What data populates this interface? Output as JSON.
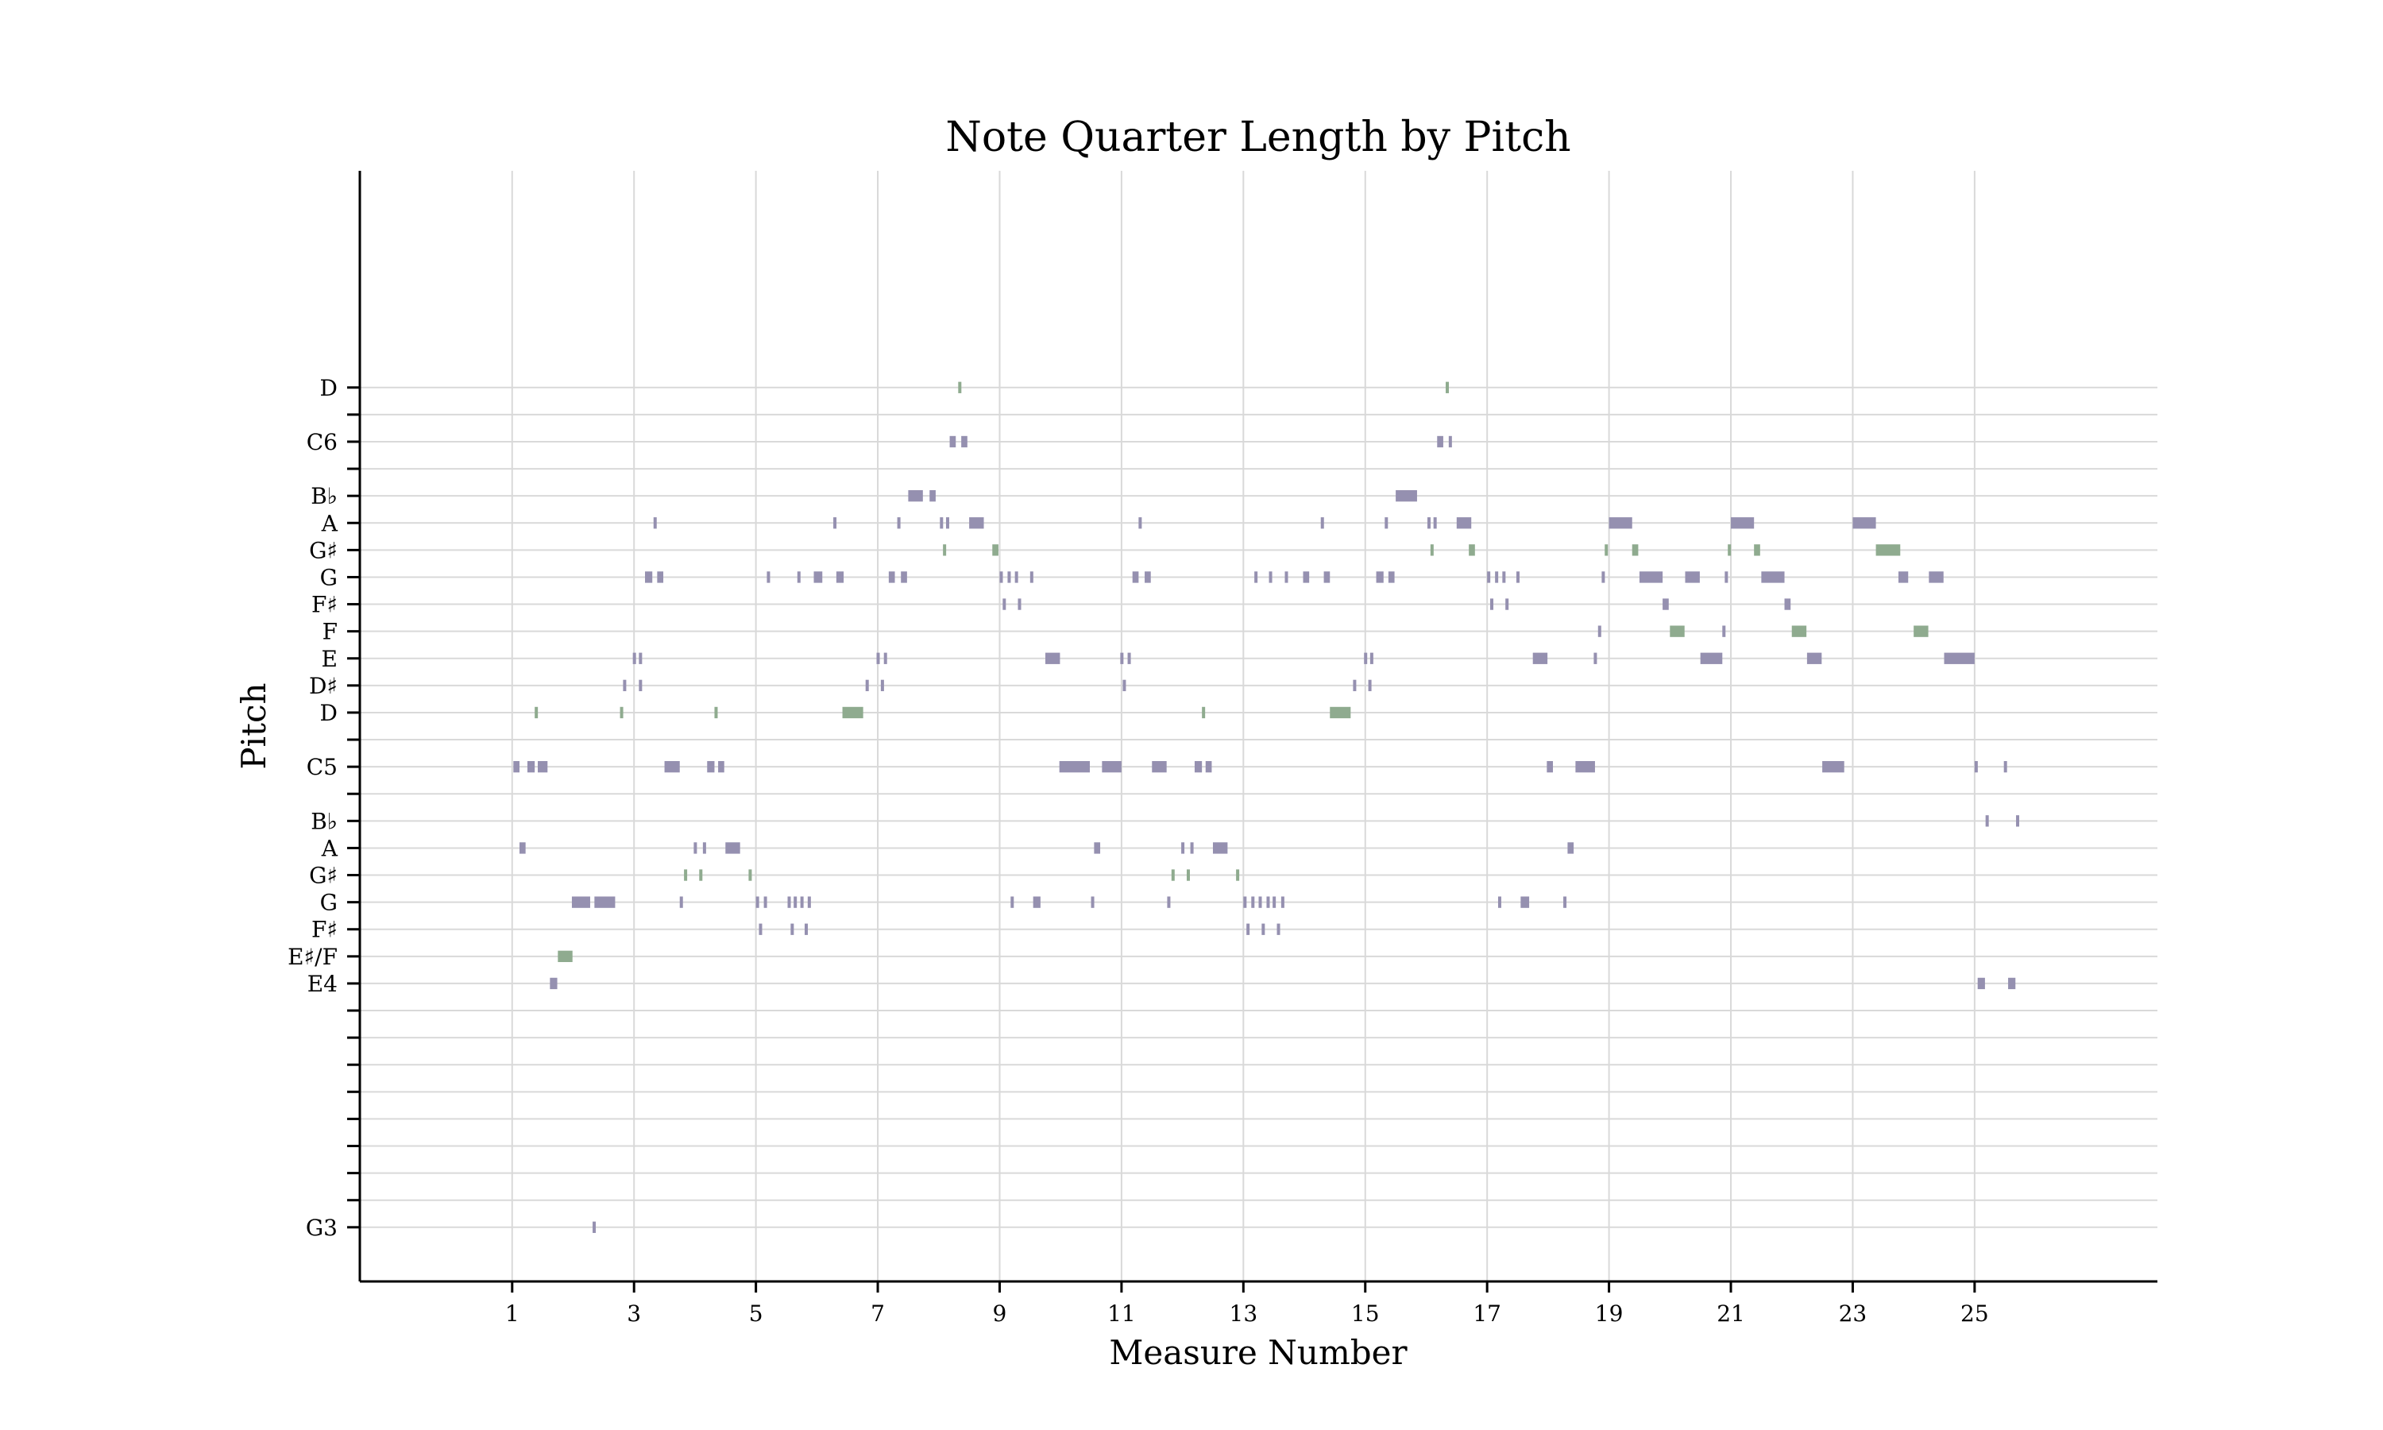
{
  "chart_data": {
    "type": "scatter",
    "title": "Note Quarter Length by Pitch",
    "xlabel": "Measure Number",
    "ylabel": "Pitch",
    "xlim": [
      -1.5,
      28
    ],
    "ylim": [
      53,
      94
    ],
    "grid": true,
    "x_ticks": [
      1,
      3,
      5,
      7,
      9,
      11,
      13,
      15,
      17,
      19,
      21,
      23,
      25
    ],
    "y_ticks": [
      {
        "pitch": 55,
        "label": "G3"
      },
      {
        "pitch": 56,
        "label": ""
      },
      {
        "pitch": 57,
        "label": ""
      },
      {
        "pitch": 58,
        "label": ""
      },
      {
        "pitch": 59,
        "label": ""
      },
      {
        "pitch": 60,
        "label": ""
      },
      {
        "pitch": 61,
        "label": ""
      },
      {
        "pitch": 62,
        "label": ""
      },
      {
        "pitch": 63,
        "label": ""
      },
      {
        "pitch": 64,
        "label": "E4"
      },
      {
        "pitch": 65,
        "label": "E♯/F"
      },
      {
        "pitch": 66,
        "label": "F♯"
      },
      {
        "pitch": 67,
        "label": "G"
      },
      {
        "pitch": 68,
        "label": "G♯"
      },
      {
        "pitch": 69,
        "label": "A"
      },
      {
        "pitch": 70,
        "label": "B♭"
      },
      {
        "pitch": 71,
        "label": ""
      },
      {
        "pitch": 72,
        "label": "C5"
      },
      {
        "pitch": 73,
        "label": ""
      },
      {
        "pitch": 74,
        "label": "D"
      },
      {
        "pitch": 75,
        "label": "D♯"
      },
      {
        "pitch": 76,
        "label": "E"
      },
      {
        "pitch": 77,
        "label": "F"
      },
      {
        "pitch": 78,
        "label": "F♯"
      },
      {
        "pitch": 79,
        "label": "G"
      },
      {
        "pitch": 80,
        "label": "G♯"
      },
      {
        "pitch": 81,
        "label": "A"
      },
      {
        "pitch": 82,
        "label": "B♭"
      },
      {
        "pitch": 83,
        "label": ""
      },
      {
        "pitch": 84,
        "label": "C6"
      },
      {
        "pitch": 85,
        "label": ""
      },
      {
        "pitch": 86,
        "label": "D"
      }
    ],
    "colors": {
      "natural": "#9590b0",
      "accidental": "#8fab8f"
    },
    "note_height": 0.42,
    "notes": [
      {
        "p": 72,
        "x": 1.02,
        "d": 0.1
      },
      {
        "p": 72,
        "x": 1.25,
        "d": 0.12
      },
      {
        "p": 72,
        "x": 1.42,
        "d": 0.16
      },
      {
        "p": 69,
        "x": 1.12,
        "d": 0.1
      },
      {
        "p": 74,
        "x": 1.37,
        "d": 0.05,
        "acc": true
      },
      {
        "p": 64,
        "x": 1.62,
        "d": 0.12
      },
      {
        "p": 65,
        "x": 1.75,
        "d": 0.24,
        "acc": true
      },
      {
        "p": 67,
        "x": 1.98,
        "d": 0.3
      },
      {
        "p": 67,
        "x": 2.35,
        "d": 0.34
      },
      {
        "p": 55,
        "x": 2.32,
        "d": 0.05
      },
      {
        "p": 74,
        "x": 2.77,
        "d": 0.05,
        "acc": true
      },
      {
        "p": 75,
        "x": 2.82,
        "d": 0.05
      },
      {
        "p": 76,
        "x": 2.98,
        "d": 0.05
      },
      {
        "p": 76,
        "x": 3.08,
        "d": 0.05
      },
      {
        "p": 75,
        "x": 3.08,
        "d": 0.05
      },
      {
        "p": 79,
        "x": 3.18,
        "d": 0.12
      },
      {
        "p": 79,
        "x": 3.38,
        "d": 0.1
      },
      {
        "p": 81,
        "x": 3.32,
        "d": 0.05
      },
      {
        "p": 72,
        "x": 3.5,
        "d": 0.25
      },
      {
        "p": 67,
        "x": 3.75,
        "d": 0.05
      },
      {
        "p": 68,
        "x": 3.82,
        "d": 0.05,
        "acc": true
      },
      {
        "p": 69,
        "x": 3.98,
        "d": 0.05
      },
      {
        "p": 68,
        "x": 4.07,
        "d": 0.05,
        "acc": true
      },
      {
        "p": 69,
        "x": 4.13,
        "d": 0.05
      },
      {
        "p": 72,
        "x": 4.2,
        "d": 0.12
      },
      {
        "p": 72,
        "x": 4.38,
        "d": 0.1
      },
      {
        "p": 74,
        "x": 4.32,
        "d": 0.05,
        "acc": true
      },
      {
        "p": 69,
        "x": 4.5,
        "d": 0.24
      },
      {
        "p": 68,
        "x": 4.88,
        "d": 0.05,
        "acc": true
      },
      {
        "p": 67,
        "x": 5.0,
        "d": 0.05
      },
      {
        "p": 66,
        "x": 5.05,
        "d": 0.05
      },
      {
        "p": 67,
        "x": 5.13,
        "d": 0.05
      },
      {
        "p": 79,
        "x": 5.18,
        "d": 0.05
      },
      {
        "p": 67,
        "x": 5.52,
        "d": 0.05
      },
      {
        "p": 67,
        "x": 5.62,
        "d": 0.05
      },
      {
        "p": 66,
        "x": 5.57,
        "d": 0.05
      },
      {
        "p": 79,
        "x": 5.68,
        "d": 0.05
      },
      {
        "p": 67,
        "x": 5.73,
        "d": 0.05
      },
      {
        "p": 66,
        "x": 5.8,
        "d": 0.05
      },
      {
        "p": 67,
        "x": 5.85,
        "d": 0.05
      },
      {
        "p": 79,
        "x": 5.95,
        "d": 0.14
      },
      {
        "p": 81,
        "x": 6.27,
        "d": 0.05
      },
      {
        "p": 79,
        "x": 6.32,
        "d": 0.12
      },
      {
        "p": 74,
        "x": 6.42,
        "d": 0.34,
        "acc": true
      },
      {
        "p": 75,
        "x": 6.8,
        "d": 0.05
      },
      {
        "p": 76,
        "x": 6.98,
        "d": 0.05
      },
      {
        "p": 76,
        "x": 7.1,
        "d": 0.05
      },
      {
        "p": 75,
        "x": 7.05,
        "d": 0.05
      },
      {
        "p": 79,
        "x": 7.18,
        "d": 0.1
      },
      {
        "p": 81,
        "x": 7.32,
        "d": 0.05
      },
      {
        "p": 79,
        "x": 7.38,
        "d": 0.1
      },
      {
        "p": 82,
        "x": 7.5,
        "d": 0.24
      },
      {
        "p": 82,
        "x": 7.85,
        "d": 0.1
      },
      {
        "p": 81,
        "x": 8.02,
        "d": 0.05
      },
      {
        "p": 80,
        "x": 8.07,
        "d": 0.05,
        "acc": true
      },
      {
        "p": 81,
        "x": 8.12,
        "d": 0.05
      },
      {
        "p": 84,
        "x": 8.18,
        "d": 0.1
      },
      {
        "p": 86,
        "x": 8.32,
        "d": 0.05,
        "acc": true
      },
      {
        "p": 84,
        "x": 8.37,
        "d": 0.1
      },
      {
        "p": 81,
        "x": 8.5,
        "d": 0.24
      },
      {
        "p": 80,
        "x": 8.88,
        "d": 0.1,
        "acc": true
      },
      {
        "p": 79,
        "x": 9.0,
        "d": 0.05
      },
      {
        "p": 78,
        "x": 9.05,
        "d": 0.05
      },
      {
        "p": 79,
        "x": 9.13,
        "d": 0.05
      },
      {
        "p": 67,
        "x": 9.18,
        "d": 0.05
      },
      {
        "p": 79,
        "x": 9.25,
        "d": 0.05
      },
      {
        "p": 78,
        "x": 9.3,
        "d": 0.05
      },
      {
        "p": 79,
        "x": 9.5,
        "d": 0.05
      },
      {
        "p": 67,
        "x": 9.55,
        "d": 0.12
      },
      {
        "p": 76,
        "x": 9.75,
        "d": 0.24
      },
      {
        "p": 72,
        "x": 9.98,
        "d": 0.5
      },
      {
        "p": 67,
        "x": 10.5,
        "d": 0.05
      },
      {
        "p": 69,
        "x": 10.55,
        "d": 0.1
      },
      {
        "p": 72,
        "x": 10.68,
        "d": 0.32
      },
      {
        "p": 76,
        "x": 10.98,
        "d": 0.05
      },
      {
        "p": 75,
        "x": 11.02,
        "d": 0.05
      },
      {
        "p": 76,
        "x": 11.1,
        "d": 0.05
      },
      {
        "p": 79,
        "x": 11.18,
        "d": 0.1
      },
      {
        "p": 81,
        "x": 11.28,
        "d": 0.05
      },
      {
        "p": 79,
        "x": 11.38,
        "d": 0.1
      },
      {
        "p": 72,
        "x": 11.5,
        "d": 0.24
      },
      {
        "p": 67,
        "x": 11.75,
        "d": 0.05
      },
      {
        "p": 68,
        "x": 11.82,
        "d": 0.05,
        "acc": true
      },
      {
        "p": 69,
        "x": 11.98,
        "d": 0.05
      },
      {
        "p": 68,
        "x": 12.07,
        "d": 0.05,
        "acc": true
      },
      {
        "p": 69,
        "x": 12.13,
        "d": 0.05
      },
      {
        "p": 72,
        "x": 12.2,
        "d": 0.12
      },
      {
        "p": 74,
        "x": 12.32,
        "d": 0.05,
        "acc": true
      },
      {
        "p": 72,
        "x": 12.38,
        "d": 0.1
      },
      {
        "p": 69,
        "x": 12.5,
        "d": 0.24
      },
      {
        "p": 68,
        "x": 12.88,
        "d": 0.05,
        "acc": true
      },
      {
        "p": 67,
        "x": 13.0,
        "d": 0.05
      },
      {
        "p": 66,
        "x": 13.05,
        "d": 0.05
      },
      {
        "p": 67,
        "x": 13.13,
        "d": 0.05
      },
      {
        "p": 79,
        "x": 13.18,
        "d": 0.05
      },
      {
        "p": 67,
        "x": 13.25,
        "d": 0.05
      },
      {
        "p": 66,
        "x": 13.3,
        "d": 0.05
      },
      {
        "p": 67,
        "x": 13.38,
        "d": 0.05
      },
      {
        "p": 79,
        "x": 13.42,
        "d": 0.05
      },
      {
        "p": 67,
        "x": 13.48,
        "d": 0.05
      },
      {
        "p": 66,
        "x": 13.55,
        "d": 0.05
      },
      {
        "p": 67,
        "x": 13.62,
        "d": 0.05
      },
      {
        "p": 79,
        "x": 13.68,
        "d": 0.05
      },
      {
        "p": 79,
        "x": 13.98,
        "d": 0.1
      },
      {
        "p": 81,
        "x": 14.27,
        "d": 0.05
      },
      {
        "p": 79,
        "x": 14.32,
        "d": 0.1
      },
      {
        "p": 74,
        "x": 14.42,
        "d": 0.34,
        "acc": true
      },
      {
        "p": 75,
        "x": 14.8,
        "d": 0.05
      },
      {
        "p": 76,
        "x": 14.98,
        "d": 0.05
      },
      {
        "p": 76,
        "x": 15.08,
        "d": 0.05
      },
      {
        "p": 75,
        "x": 15.05,
        "d": 0.05
      },
      {
        "p": 79,
        "x": 15.18,
        "d": 0.12
      },
      {
        "p": 81,
        "x": 15.32,
        "d": 0.05
      },
      {
        "p": 79,
        "x": 15.38,
        "d": 0.1
      },
      {
        "p": 82,
        "x": 15.5,
        "d": 0.35
      },
      {
        "p": 81,
        "x": 16.02,
        "d": 0.05
      },
      {
        "p": 80,
        "x": 16.07,
        "d": 0.05,
        "acc": true
      },
      {
        "p": 81,
        "x": 16.12,
        "d": 0.05
      },
      {
        "p": 84,
        "x": 16.18,
        "d": 0.1
      },
      {
        "p": 86,
        "x": 16.32,
        "d": 0.05,
        "acc": true
      },
      {
        "p": 84,
        "x": 16.37,
        "d": 0.05
      },
      {
        "p": 81,
        "x": 16.5,
        "d": 0.24
      },
      {
        "p": 80,
        "x": 16.7,
        "d": 0.1,
        "acc": true
      },
      {
        "p": 79,
        "x": 17.0,
        "d": 0.05
      },
      {
        "p": 78,
        "x": 17.05,
        "d": 0.05
      },
      {
        "p": 79,
        "x": 17.13,
        "d": 0.05
      },
      {
        "p": 67,
        "x": 17.18,
        "d": 0.05
      },
      {
        "p": 79,
        "x": 17.25,
        "d": 0.05
      },
      {
        "p": 78,
        "x": 17.3,
        "d": 0.05
      },
      {
        "p": 79,
        "x": 17.48,
        "d": 0.05
      },
      {
        "p": 67,
        "x": 17.55,
        "d": 0.14
      },
      {
        "p": 76,
        "x": 17.75,
        "d": 0.24
      },
      {
        "p": 72,
        "x": 17.98,
        "d": 0.1
      },
      {
        "p": 69,
        "x": 18.32,
        "d": 0.1
      },
      {
        "p": 72,
        "x": 18.45,
        "d": 0.32
      },
      {
        "p": 67,
        "x": 18.25,
        "d": 0.05
      },
      {
        "p": 76,
        "x": 18.75,
        "d": 0.05
      },
      {
        "p": 77,
        "x": 18.82,
        "d": 0.05
      },
      {
        "p": 79,
        "x": 18.88,
        "d": 0.05
      },
      {
        "p": 80,
        "x": 18.93,
        "d": 0.05,
        "acc": true
      },
      {
        "p": 81,
        "x": 19.0,
        "d": 0.38
      },
      {
        "p": 80,
        "x": 19.38,
        "d": 0.1,
        "acc": true
      },
      {
        "p": 79,
        "x": 19.5,
        "d": 0.38
      },
      {
        "p": 78,
        "x": 19.88,
        "d": 0.1
      },
      {
        "p": 77,
        "x": 20.0,
        "d": 0.24,
        "acc": true
      },
      {
        "p": 79,
        "x": 20.25,
        "d": 0.24
      },
      {
        "p": 76,
        "x": 20.5,
        "d": 0.36
      },
      {
        "p": 77,
        "x": 20.86,
        "d": 0.05
      },
      {
        "p": 79,
        "x": 20.9,
        "d": 0.05
      },
      {
        "p": 80,
        "x": 20.95,
        "d": 0.05,
        "acc": true
      },
      {
        "p": 81,
        "x": 21.0,
        "d": 0.38
      },
      {
        "p": 80,
        "x": 21.38,
        "d": 0.1,
        "acc": true
      },
      {
        "p": 79,
        "x": 21.5,
        "d": 0.38
      },
      {
        "p": 78,
        "x": 21.88,
        "d": 0.1
      },
      {
        "p": 77,
        "x": 22.0,
        "d": 0.24,
        "acc": true
      },
      {
        "p": 76,
        "x": 22.25,
        "d": 0.24
      },
      {
        "p": 72,
        "x": 22.5,
        "d": 0.36
      },
      {
        "p": 81,
        "x": 23.0,
        "d": 0.38
      },
      {
        "p": 80,
        "x": 23.38,
        "d": 0.4,
        "acc": true
      },
      {
        "p": 79,
        "x": 23.75,
        "d": 0.16
      },
      {
        "p": 77,
        "x": 24.0,
        "d": 0.24,
        "acc": true
      },
      {
        "p": 79,
        "x": 24.25,
        "d": 0.24
      },
      {
        "p": 76,
        "x": 24.5,
        "d": 0.5
      },
      {
        "p": 72,
        "x": 25.0,
        "d": 0.05
      },
      {
        "p": 64,
        "x": 25.05,
        "d": 0.12
      },
      {
        "p": 70,
        "x": 25.18,
        "d": 0.05
      },
      {
        "p": 72,
        "x": 25.48,
        "d": 0.05
      },
      {
        "p": 64,
        "x": 25.55,
        "d": 0.12
      },
      {
        "p": 70,
        "x": 25.68,
        "d": 0.05
      }
    ]
  }
}
